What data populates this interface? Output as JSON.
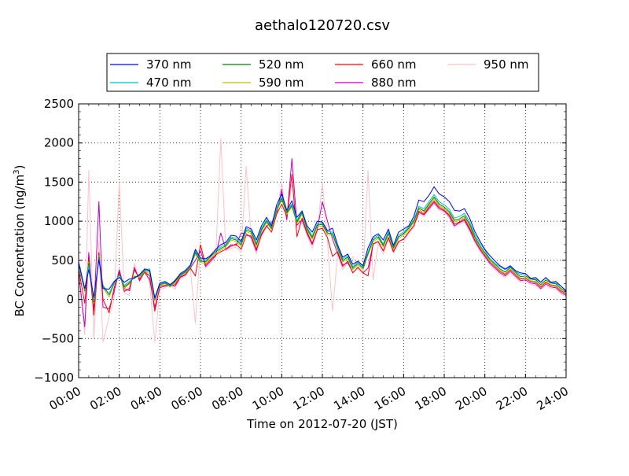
{
  "chart_data": {
    "type": "line",
    "title": "aethalo120720.csv",
    "xlabel": "Time on 2012-07-20 (JST)",
    "ylabel_main": "BC Concentration (ng/m",
    "ylabel_sup": "3",
    "ylabel_end": ")",
    "xlim": [
      "00:00",
      "24:00"
    ],
    "ylim": [
      -1000,
      2500
    ],
    "x_ticks": [
      "00:00",
      "02:00",
      "04:00",
      "06:00",
      "08:00",
      "10:00",
      "12:00",
      "14:00",
      "16:00",
      "18:00",
      "20:00",
      "22:00",
      "24:00"
    ],
    "y_ticks": [
      "2500",
      "2000",
      "1500",
      "1000",
      "500",
      "0",
      "−500",
      "−1000"
    ],
    "grid": true,
    "legend_position": "top",
    "x_hours": [
      0,
      0.3,
      0.5,
      0.75,
      1.0,
      1.2,
      1.5,
      1.75,
      2.0,
      2.25,
      2.5,
      2.75,
      3.0,
      3.25,
      3.5,
      3.75,
      4.0,
      4.25,
      4.5,
      4.75,
      5.0,
      5.25,
      5.5,
      5.75,
      6.0,
      6.25,
      6.5,
      6.75,
      7.0,
      7.25,
      7.5,
      7.75,
      8.0,
      8.25,
      8.5,
      8.75,
      9.0,
      9.25,
      9.5,
      9.75,
      10.0,
      10.25,
      10.5,
      10.75,
      11.0,
      11.25,
      11.5,
      11.75,
      12.0,
      12.25,
      12.5,
      12.75,
      13.0,
      13.25,
      13.5,
      13.75,
      14.0,
      14.25,
      14.5,
      14.75,
      15.0,
      15.25,
      15.5,
      15.75,
      16.0,
      16.25,
      16.5,
      16.75,
      17.0,
      17.25,
      17.5,
      17.75,
      18.0,
      18.25,
      18.5,
      18.75,
      19.0,
      19.25,
      19.5,
      19.75,
      20.0,
      20.25,
      20.5,
      20.75,
      21.0,
      21.25,
      21.5,
      21.75,
      22.0,
      22.25,
      22.5,
      22.75,
      23.0,
      23.25,
      23.5,
      23.75,
      24.0
    ],
    "base": [
      450,
      100,
      400,
      0,
      500,
      150,
      80,
      200,
      300,
      180,
      200,
      260,
      300,
      350,
      400,
      0,
      200,
      200,
      150,
      250,
      300,
      350,
      400,
      600,
      500,
      500,
      550,
      600,
      650,
      700,
      800,
      750,
      700,
      900,
      850,
      700,
      900,
      1000,
      900,
      1150,
      1300,
      1100,
      1200,
      1000,
      1100,
      900,
      800,
      950,
      950,
      850,
      850,
      650,
      500,
      550,
      400,
      450,
      400,
      600,
      750,
      800,
      700,
      850,
      650,
      800,
      850,
      900,
      1000,
      1150,
      1100,
      1200,
      1300,
      1200,
      1150,
      1100,
      1000,
      1000,
      1050,
      950,
      800,
      700,
      600,
      500,
      450,
      400,
      350,
      400,
      350,
      300,
      300,
      250,
      250,
      200,
      250,
      200,
      200,
      150,
      100
    ],
    "series": [
      {
        "name": "370 nm",
        "color": "#0000ff",
        "offsets": [
          30,
          40,
          -20,
          30,
          10,
          -10,
          50,
          30,
          -20,
          40,
          60,
          10,
          20,
          40,
          -30,
          20,
          10,
          30,
          40,
          -10,
          30,
          20,
          40,
          40,
          30,
          20,
          10,
          40,
          50,
          30,
          20,
          60,
          40,
          30,
          50,
          60,
          40,
          50,
          40,
          60,
          50,
          40,
          60,
          50,
          30,
          40,
          60,
          50,
          40,
          30,
          60,
          50,
          40,
          30,
          50,
          40,
          30,
          60,
          50,
          40,
          60,
          50,
          40,
          60,
          50,
          40,
          60,
          120,
          150,
          130,
          140,
          150,
          160,
          150,
          140,
          130,
          110,
          90,
          70,
          50,
          40,
          60,
          40,
          30,
          40,
          30,
          20,
          40,
          30,
          20,
          30,
          20,
          30,
          20,
          30,
          20,
          10
        ]
      },
      {
        "name": "470 nm",
        "color": "#00bfbf",
        "offsets": [
          0,
          20,
          30,
          -10,
          20,
          30,
          -10,
          20,
          10,
          0,
          30,
          20,
          10,
          30,
          -10,
          10,
          0,
          20,
          30,
          0,
          20,
          10,
          30,
          20,
          10,
          0,
          20,
          30,
          20,
          10,
          0,
          30,
          20,
          10,
          30,
          20,
          10,
          20,
          30,
          20,
          10,
          30,
          20,
          10,
          30,
          20,
          10,
          20,
          30,
          20,
          10,
          30,
          20,
          10,
          20,
          30,
          20,
          10,
          30,
          20,
          10,
          20,
          30,
          20,
          10,
          30,
          20,
          40,
          60,
          50,
          40,
          50,
          60,
          50,
          40,
          60,
          50,
          40,
          30,
          20,
          30,
          20,
          10,
          20,
          30,
          20,
          10,
          20,
          30,
          20,
          10,
          20,
          30,
          20,
          10,
          20,
          10
        ]
      },
      {
        "name": "520 nm",
        "color": "#008000",
        "offsets": [
          -10,
          10,
          60,
          -30,
          40,
          20,
          -20,
          10,
          20,
          -20,
          10,
          30,
          0,
          20,
          -40,
          0,
          -10,
          10,
          20,
          -20,
          10,
          0,
          20,
          0,
          -10,
          -20,
          0,
          10,
          0,
          -10,
          -20,
          10,
          0,
          -10,
          10,
          0,
          -10,
          0,
          10,
          0,
          -10,
          10,
          0,
          -10,
          10,
          0,
          -10,
          0,
          10,
          0,
          -10,
          10,
          0,
          -10,
          0,
          10,
          0,
          -10,
          10,
          0,
          -10,
          0,
          10,
          0,
          -10,
          10,
          0,
          20,
          30,
          20,
          10,
          20,
          30,
          20,
          10,
          30,
          20,
          10,
          0,
          -10,
          0,
          10,
          0,
          -10,
          0,
          10,
          0,
          -10,
          0,
          10,
          0,
          -10,
          0,
          10,
          0,
          -10,
          0
        ]
      },
      {
        "name": "590 nm",
        "color": "#bfbf00",
        "offsets": [
          -30,
          0,
          80,
          -60,
          60,
          0,
          -50,
          0,
          20,
          -40,
          0,
          40,
          -20,
          10,
          -70,
          -20,
          -20,
          0,
          10,
          -40,
          0,
          -10,
          10,
          -20,
          -30,
          -40,
          -20,
          -10,
          -20,
          -30,
          -40,
          -10,
          -20,
          -30,
          -10,
          -20,
          -30,
          -20,
          -10,
          -20,
          -30,
          -10,
          -20,
          -30,
          -10,
          -20,
          -30,
          -20,
          -10,
          -20,
          -30,
          -10,
          -20,
          -30,
          -20,
          -10,
          -20,
          -30,
          -10,
          -20,
          -30,
          -20,
          -10,
          -20,
          -30,
          -10,
          -20,
          0,
          10,
          0,
          -10,
          0,
          10,
          0,
          -10,
          10,
          0,
          -10,
          -20,
          -30,
          -20,
          -10,
          -20,
          -30,
          -20,
          -10,
          -20,
          -30,
          -20,
          -10,
          -20,
          -30,
          -20,
          -10,
          -20,
          -30,
          -20
        ]
      },
      {
        "name": "660 nm",
        "color": "#ff0000",
        "offsets": [
          -60,
          -150,
          120,
          -200,
          100,
          -150,
          -250,
          -50,
          50,
          -80,
          -60,
          120,
          -40,
          0,
          -100,
          -150,
          -30,
          -20,
          20,
          -60,
          -10,
          -30,
          0,
          -300,
          200,
          -60,
          -40,
          -30,
          -40,
          -60,
          -120,
          -40,
          -60,
          -80,
          -40,
          -60,
          -80,
          -60,
          -40,
          -60,
          -80,
          -40,
          400,
          -200,
          -60,
          -40,
          -80,
          -60,
          -40,
          -60,
          -300,
          -40,
          -60,
          -80,
          -60,
          -40,
          -60,
          -300,
          -40,
          -60,
          -80,
          -60,
          -40,
          -60,
          -80,
          -40,
          -60,
          -20,
          -10,
          -20,
          -40,
          -20,
          -10,
          -20,
          -40,
          -10,
          -20,
          -40,
          -30,
          -40,
          -30,
          -20,
          -30,
          -40,
          -30,
          -20,
          -30,
          -40,
          -30,
          -20,
          -30,
          -40,
          -30,
          -20,
          -30,
          -40,
          -30
        ]
      },
      {
        "name": "880 nm",
        "color": "#bf00bf",
        "offsets": [
          -100,
          -450,
          200,
          -150,
          750,
          -250,
          -200,
          -100,
          80,
          -40,
          -90,
          150,
          -60,
          0,
          -150,
          -100,
          -50,
          -30,
          30,
          -80,
          -20,
          -40,
          0,
          -100,
          120,
          -80,
          -60,
          -40,
          200,
          -60,
          -100,
          -60,
          150,
          -60,
          -60,
          -80,
          -60,
          -60,
          80,
          -60,
          100,
          -80,
          600,
          -50,
          -80,
          -60,
          -100,
          -60,
          300,
          150,
          -80,
          -60,
          -80,
          -60,
          -60,
          -40,
          -60,
          -200,
          -40,
          -60,
          -80,
          -60,
          -40,
          -60,
          -80,
          -40,
          -60,
          -40,
          -20,
          -40,
          -60,
          -40,
          -20,
          -40,
          -60,
          -20,
          -40,
          -60,
          -50,
          -60,
          -50,
          -40,
          -50,
          -60,
          -50,
          -40,
          -50,
          -60,
          -50,
          -40,
          -50,
          -60,
          -50,
          -40,
          -50,
          -60,
          -50
        ]
      },
      {
        "name": "950 nm",
        "color": "#ffc0cb",
        "offsets": [
          -150,
          -550,
          1250,
          -500,
          250,
          -700,
          -300,
          -200,
          1200,
          -100,
          -150,
          200,
          -80,
          50,
          -200,
          -550,
          -80,
          -50,
          40,
          -120,
          -30,
          -60,
          0,
          -900,
          200,
          -100,
          -80,
          -60,
          1400,
          -80,
          -150,
          -80,
          -100,
          800,
          -80,
          -120,
          -80,
          -80,
          100,
          -80,
          200,
          -100,
          300,
          -80,
          -120,
          -80,
          -150,
          -80,
          550,
          -100,
          -1000,
          -80,
          -120,
          -80,
          150,
          -60,
          -80,
          1050,
          -500,
          -80,
          -120,
          -80,
          -60,
          -80,
          -120,
          -60,
          -80,
          -60,
          -40,
          -60,
          -80,
          -60,
          -40,
          -60,
          -80,
          -40,
          -60,
          -80,
          -70,
          -80,
          -70,
          -60,
          -70,
          -80,
          -70,
          -60,
          -70,
          -80,
          -70,
          -60,
          -70,
          -80,
          -70,
          -60,
          -70,
          -80,
          -70
        ]
      }
    ]
  }
}
